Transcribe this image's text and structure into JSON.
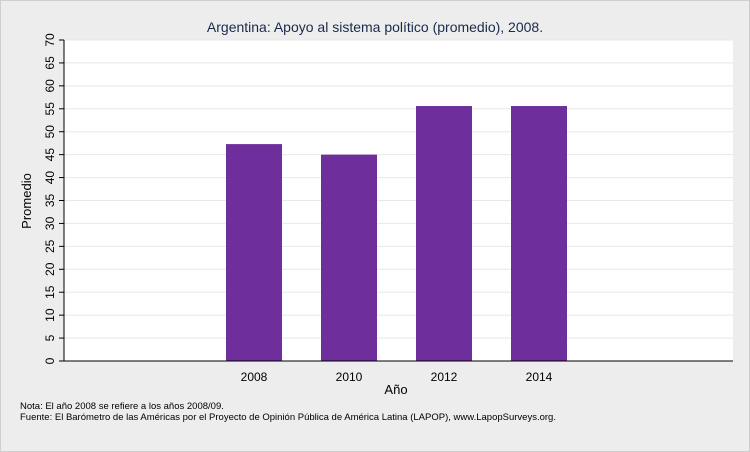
{
  "chart_data": {
    "type": "bar",
    "title": "Argentina: Apoyo al sistema político (promedio), 2008.",
    "xlabel": "Año",
    "ylabel": "Promedio",
    "categories": [
      "2008",
      "2010",
      "2012",
      "2014"
    ],
    "values": [
      47.3,
      45.0,
      55.6,
      55.6
    ],
    "ylim": [
      0,
      70
    ],
    "yticks": [
      0,
      5,
      10,
      15,
      20,
      25,
      30,
      35,
      40,
      45,
      50,
      55,
      60,
      65,
      70
    ],
    "grid": true,
    "bar_color": "#6e2e9c",
    "plot_background": "#ffffff",
    "grid_color": "#e8e8e8"
  },
  "notes": {
    "line1": "Nota: El año 2008 se refiere a los años 2008/09.",
    "line2": "Fuente: El Barómetro de las Américas por el Proyecto de Opinión Pública de América Latina (LAPOP), www.LapopSurveys.org."
  }
}
